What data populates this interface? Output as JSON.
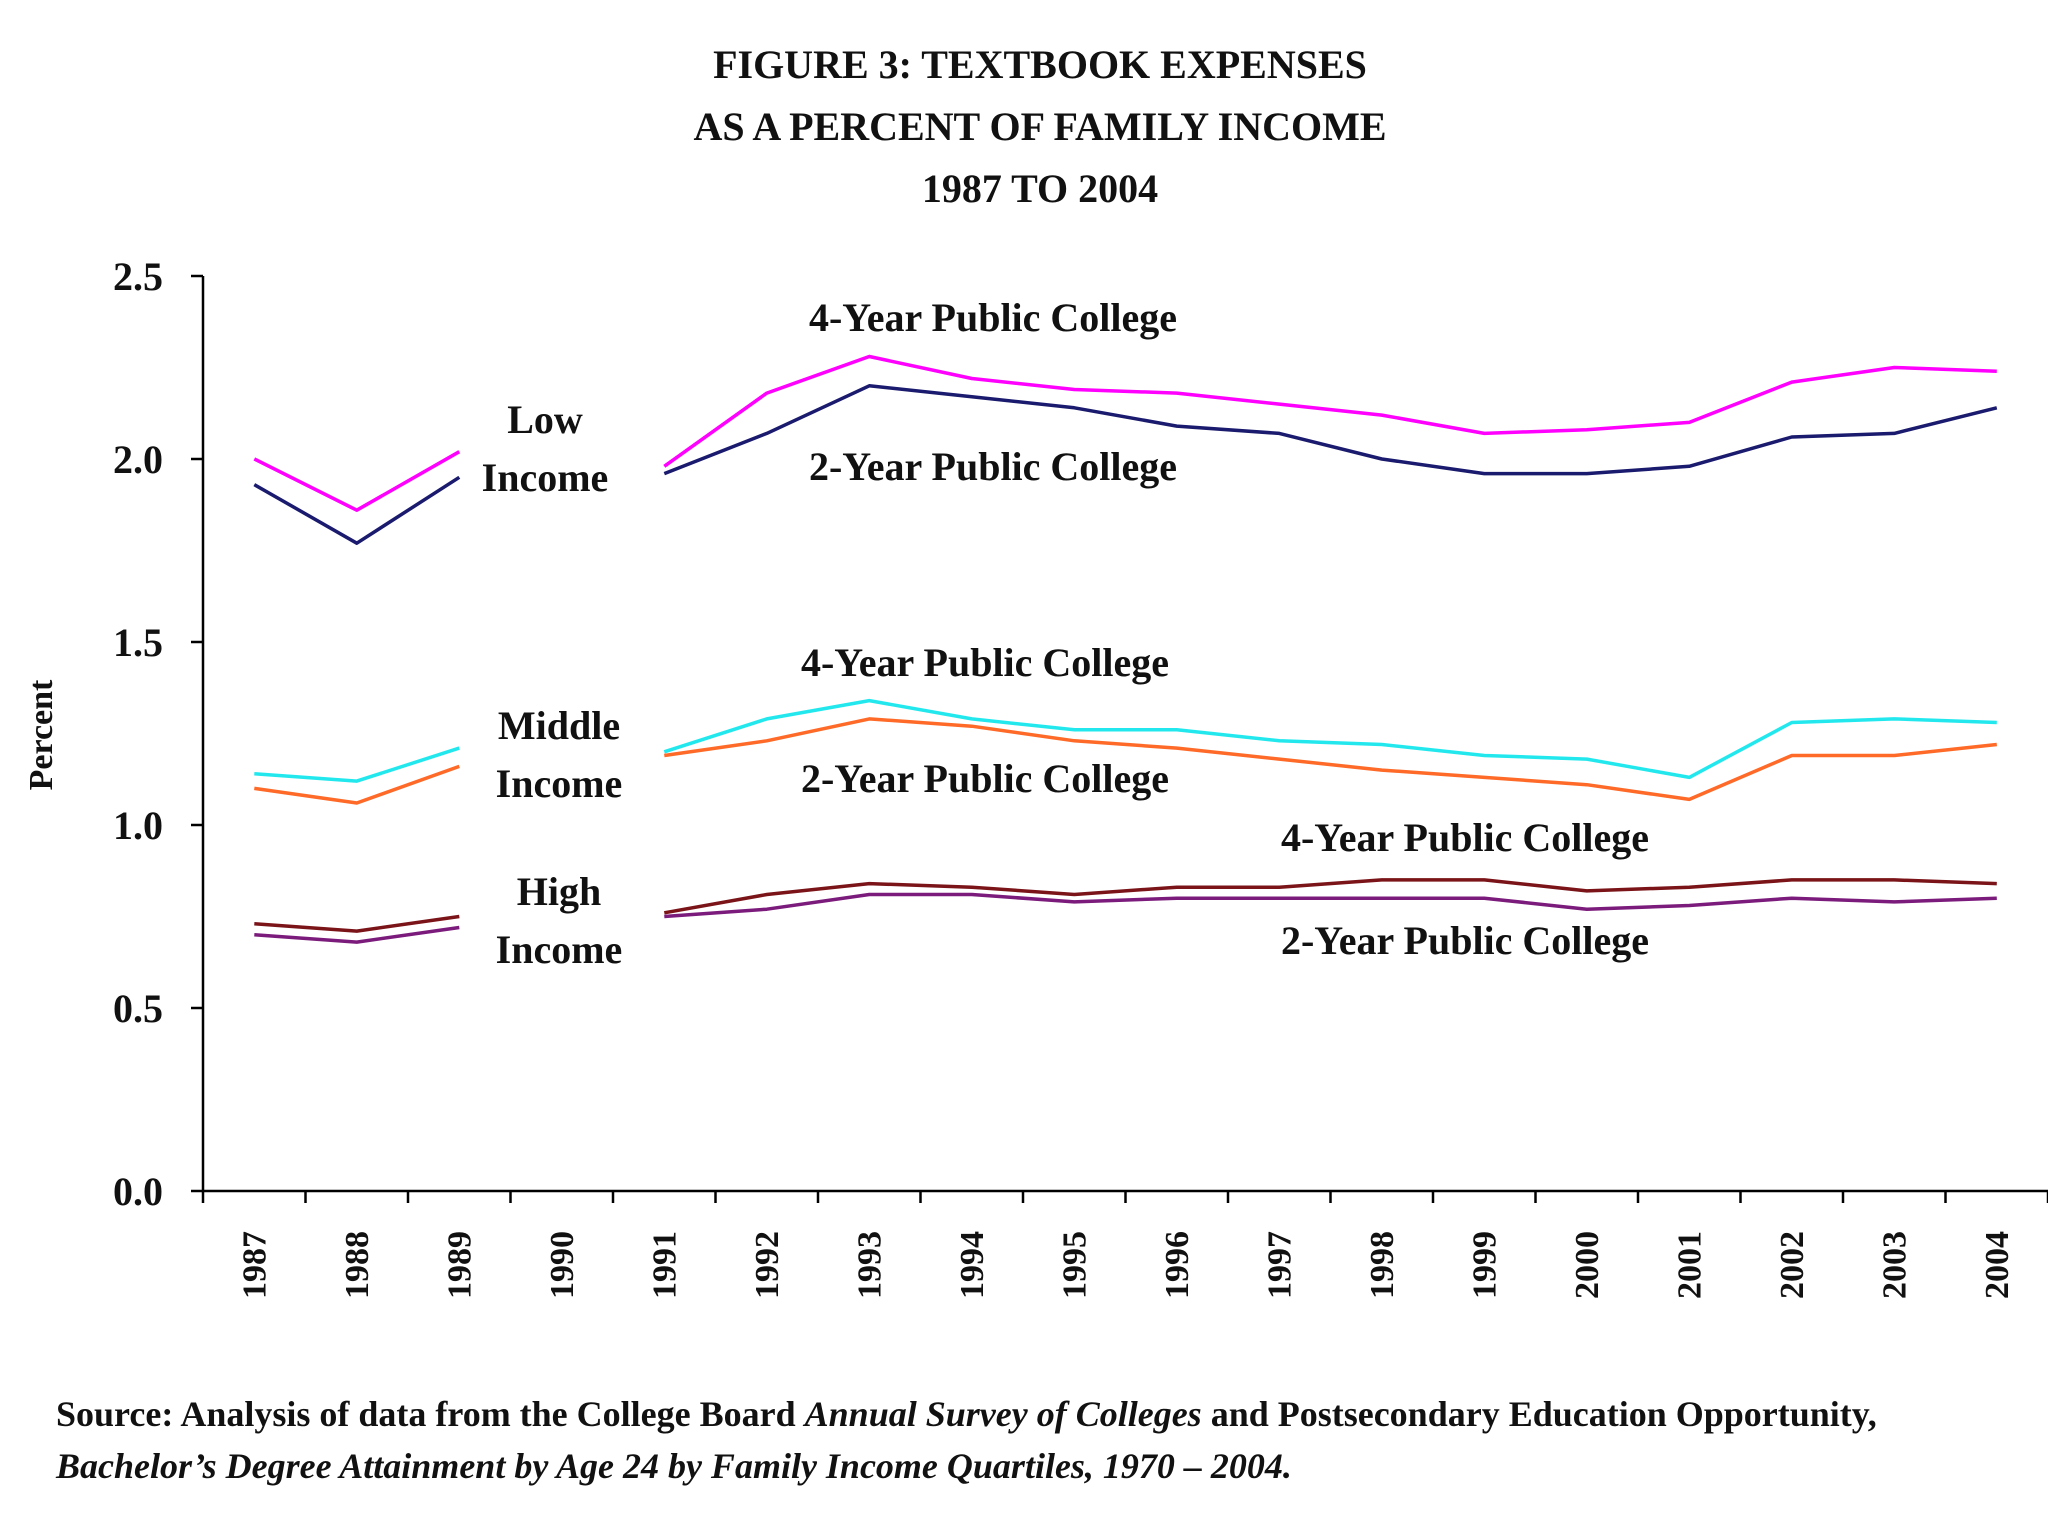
{
  "chart_data": {
    "type": "line",
    "title_lines": [
      "FIGURE 3: TEXTBOOK EXPENSES",
      "AS A PERCENT OF FAMILY INCOME",
      "1987 TO 2004"
    ],
    "ylabel": "Percent",
    "xlabel": "",
    "ylim": [
      0,
      2.5
    ],
    "yticks": [
      "0.0",
      "0.5",
      "1.0",
      "1.5",
      "2.0",
      "2.5"
    ],
    "ytick_values": [
      0,
      0.5,
      1.0,
      1.5,
      2.0,
      2.5
    ],
    "grid": false,
    "categories": [
      "1987",
      "1988",
      "1989",
      "1990",
      "1991",
      "1992",
      "1993",
      "1994",
      "1995",
      "1996",
      "1997",
      "1998",
      "1999",
      "2000",
      "2001",
      "2002",
      "2003",
      "2004"
    ],
    "series": [
      {
        "name": "Low Income 4-Year Public College",
        "color": "#ff00ff",
        "values": [
          2.0,
          1.86,
          2.02,
          null,
          1.98,
          2.18,
          2.28,
          2.22,
          2.19,
          2.18,
          2.15,
          2.12,
          2.07,
          2.08,
          2.1,
          2.21,
          2.25,
          2.24
        ]
      },
      {
        "name": "Low Income 2-Year Public College",
        "color": "#1a1a6e",
        "values": [
          1.93,
          1.77,
          1.95,
          null,
          1.96,
          2.07,
          2.2,
          2.17,
          2.14,
          2.09,
          2.07,
          2.0,
          1.96,
          1.96,
          1.98,
          2.06,
          2.07,
          2.14
        ]
      },
      {
        "name": "Middle Income 4-Year Public College",
        "color": "#22e8ee",
        "values": [
          1.14,
          1.12,
          1.21,
          null,
          1.2,
          1.29,
          1.34,
          1.29,
          1.26,
          1.26,
          1.23,
          1.22,
          1.19,
          1.18,
          1.13,
          1.28,
          1.29,
          1.28
        ]
      },
      {
        "name": "Middle Income 2-Year Public College",
        "color": "#ff6a28",
        "values": [
          1.1,
          1.06,
          1.16,
          null,
          1.19,
          1.23,
          1.29,
          1.27,
          1.23,
          1.21,
          1.18,
          1.15,
          1.13,
          1.11,
          1.07,
          1.19,
          1.19,
          1.22
        ]
      },
      {
        "name": "High Income 4-Year Public College",
        "color": "#7a1418",
        "values": [
          0.73,
          0.71,
          0.75,
          null,
          0.76,
          0.81,
          0.84,
          0.83,
          0.81,
          0.83,
          0.83,
          0.85,
          0.85,
          0.82,
          0.83,
          0.85,
          0.85,
          0.84
        ]
      },
      {
        "name": "High Income 2-Year Public College",
        "color": "#7b1b7b",
        "values": [
          0.7,
          0.68,
          0.72,
          null,
          0.75,
          0.77,
          0.81,
          0.81,
          0.79,
          0.8,
          0.8,
          0.8,
          0.8,
          0.77,
          0.78,
          0.8,
          0.79,
          0.8
        ]
      }
    ],
    "annotations": {
      "low_income": [
        "Low",
        "Income"
      ],
      "middle_income": [
        "Middle",
        "Income"
      ],
      "high_income": [
        "High",
        "Income"
      ],
      "low_4yr": "4-Year Public College",
      "low_2yr": "2-Year Public College",
      "middle_4yr": "4-Year Public College",
      "middle_2yr": "2-Year Public College",
      "high_4yr": "4-Year Public College",
      "high_2yr": "2-Year Public College"
    }
  },
  "source": {
    "prefix": "Source: Analysis of data from the College Board ",
    "italic1": "Annual Survey of Colleges",
    "middle": " and Postsecondary Education Opportunity, ",
    "italic2": "Bachelor’s Degree Attainment by Age 24 by Family Income Quartiles, 1970 – 2004."
  }
}
